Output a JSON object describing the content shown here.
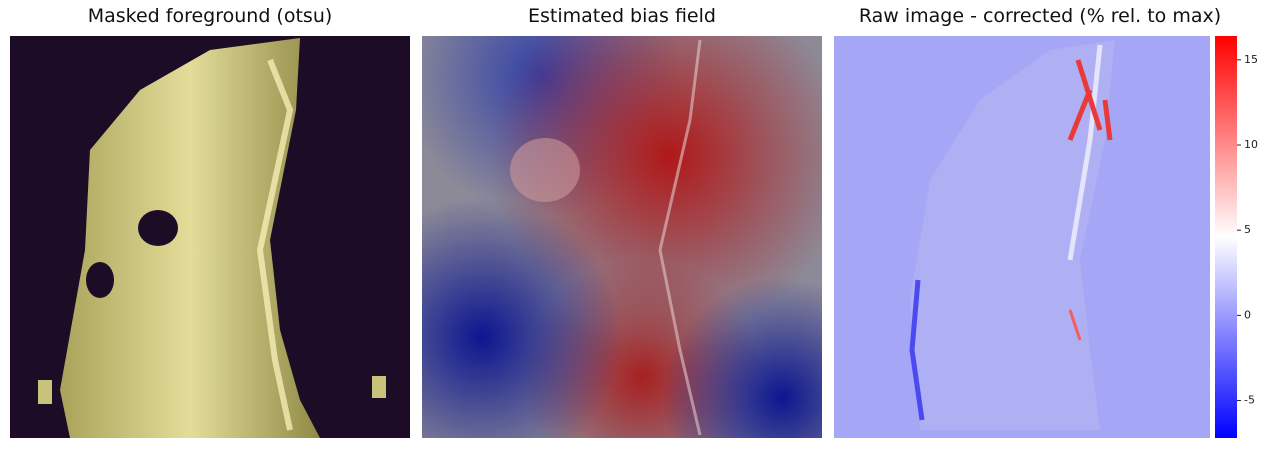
{
  "panels": [
    {
      "title": "Masked foreground (otsu)"
    },
    {
      "title": "Estimated bias field"
    },
    {
      "title": "Raw image - corrected (% rel. to max)"
    }
  ],
  "colorbar": {
    "lim": [
      -7.2,
      16.4
    ],
    "ticks": [
      -5,
      0,
      5,
      10,
      15
    ]
  }
}
